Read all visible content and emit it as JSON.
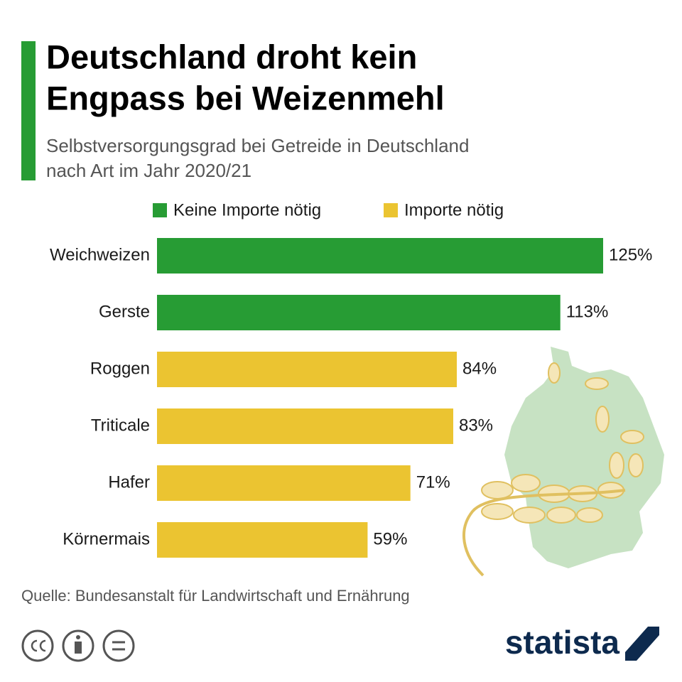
{
  "chart_data": {
    "type": "bar",
    "orientation": "horizontal",
    "title": [
      "Deutschland droht kein",
      "Engpass bei Weizenmehl"
    ],
    "subtitle": [
      "Selbstversorgungsgrad bei Getreide in Deutschland",
      "nach Art im Jahr 2020/21"
    ],
    "categories": [
      "Weichweizen",
      "Gerste",
      "Roggen",
      "Triticale",
      "Hafer",
      "Körnermais"
    ],
    "series": [
      {
        "name": "Keine Importe nötig",
        "color": "#279c34",
        "values": [
          125,
          113,
          null,
          null,
          null,
          null
        ],
        "value_labels": [
          "125%",
          "113%",
          null,
          null,
          null,
          null
        ]
      },
      {
        "name": "Importe nötig",
        "color": "#ebc431",
        "values": [
          null,
          null,
          84,
          83,
          71,
          59
        ],
        "value_labels": [
          null,
          null,
          "84%",
          "83%",
          "71%",
          "59%"
        ]
      }
    ],
    "source": "Quelle: Bundesanstalt für Landwirtschaft und Ernährung",
    "brand": "statista"
  }
}
